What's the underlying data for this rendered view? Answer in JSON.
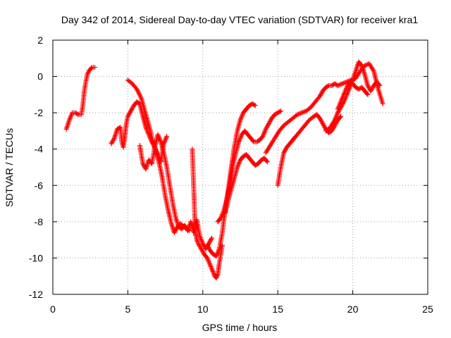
{
  "chart_data": {
    "type": "scatter",
    "title": "Day 342 of 2014, Sidereal Day-to-day VTEC variation (SDTVAR) for receiver kra1",
    "xlabel": "GPS time / hours",
    "ylabel": "SDTVAR / TECUs",
    "xlim": [
      0,
      25
    ],
    "ylim": [
      -12,
      2
    ],
    "xticks": [
      0,
      5,
      10,
      15,
      20,
      25
    ],
    "yticks": [
      -12,
      -10,
      -8,
      -6,
      -4,
      -2,
      0,
      2
    ],
    "grid": true,
    "marker": "plus",
    "color": "#ff0000",
    "series": [
      {
        "x": [
          0.9,
          1.1,
          1.3,
          1.5,
          1.7,
          1.9,
          2.0,
          2.1,
          2.2,
          2.3,
          2.4,
          2.5,
          2.6,
          2.8
        ],
        "y": [
          -2.9,
          -2.4,
          -2.0,
          -2.0,
          -2.1,
          -2.1,
          -1.6,
          -0.8,
          -0.3,
          0.1,
          0.3,
          0.4,
          0.5,
          0.5
        ]
      },
      {
        "x": [
          3.9,
          4.1,
          4.3,
          4.5,
          4.6,
          4.7,
          4.8,
          4.9,
          5.0,
          5.2,
          5.4,
          5.6,
          5.8,
          6.0,
          6.2,
          6.4,
          6.6,
          6.8,
          7.0,
          7.2,
          7.4,
          7.6
        ],
        "y": [
          -3.7,
          -3.4,
          -2.9,
          -2.8,
          -3.6,
          -3.9,
          -3.3,
          -2.6,
          -2.2,
          -1.9,
          -1.6,
          -1.4,
          -1.5,
          -2.2,
          -2.8,
          -3.2,
          -3.6,
          -3.9,
          -4.3,
          -4.7,
          -3.7,
          -3.3
        ]
      },
      {
        "x": [
          5.0,
          5.3,
          5.6,
          5.9,
          6.1,
          6.3,
          6.5,
          6.7,
          6.9,
          7.1,
          7.3,
          7.5,
          7.7,
          7.9,
          8.1,
          8.3,
          8.5,
          8.8,
          9.1
        ],
        "y": [
          -0.2,
          -0.4,
          -0.7,
          -1.2,
          -1.8,
          -2.4,
          -3.0,
          -3.7,
          -4.2,
          -4.8,
          -5.6,
          -6.6,
          -7.4,
          -8.1,
          -8.6,
          -8.3,
          -8.1,
          -8.3,
          -8.5
        ]
      },
      {
        "x": [
          5.8,
          6.0,
          6.2,
          6.4,
          6.6,
          6.8,
          7.0,
          7.2,
          7.4,
          7.6,
          7.8,
          8.0,
          8.2,
          8.4,
          8.6,
          8.8,
          9.0,
          9.2,
          9.4,
          9.6,
          9.8,
          10.0,
          10.2,
          10.4,
          10.6
        ],
        "y": [
          -3.8,
          -4.8,
          -5.1,
          -4.6,
          -4.8,
          -3.9,
          -3.2,
          -3.6,
          -4.2,
          -5.0,
          -6.0,
          -7.0,
          -7.8,
          -8.3,
          -8.4,
          -8.2,
          -8.5,
          -8.0,
          -8.6,
          -7.9,
          -8.8,
          -9.2,
          -9.5,
          -9.2,
          -8.9
        ]
      },
      {
        "x": [
          9.3,
          9.4,
          9.5,
          9.6,
          9.7,
          9.9,
          10.1,
          10.3,
          10.5,
          10.7,
          10.8,
          10.9,
          11.0,
          11.1,
          11.2,
          11.3
        ],
        "y": [
          -4.0,
          -6.2,
          -8.6,
          -9.0,
          -9.2,
          -9.5,
          -9.8,
          -10.0,
          -10.4,
          -10.8,
          -11.0,
          -11.1,
          -10.9,
          -10.3,
          -9.8,
          -9.3
        ]
      },
      {
        "x": [
          10.3,
          10.5,
          10.7,
          10.9,
          11.1,
          11.3,
          11.5,
          11.7,
          11.9,
          12.1,
          12.3,
          12.5,
          12.7,
          12.9,
          13.1,
          13.3,
          13.5
        ],
        "y": [
          -9.3,
          -9.6,
          -9.8,
          -9.9,
          -9.5,
          -8.6,
          -7.3,
          -6.2,
          -5.0,
          -3.9,
          -3.0,
          -2.4,
          -2.0,
          -1.8,
          -1.6,
          -1.5,
          -1.6
        ]
      },
      {
        "x": [
          11.0,
          11.2,
          11.4,
          11.6,
          11.8,
          12.0,
          12.2,
          12.4,
          12.6,
          12.8,
          13.0,
          13.2,
          13.4,
          13.6,
          13.8,
          14.0,
          14.2,
          14.4,
          14.6,
          14.8,
          15.0,
          15.2
        ],
        "y": [
          -8.0,
          -7.8,
          -7.4,
          -6.8,
          -6.0,
          -4.9,
          -4.2,
          -3.6,
          -3.2,
          -3.0,
          -3.2,
          -3.4,
          -3.6,
          -3.6,
          -3.5,
          -3.3,
          -2.9,
          -2.6,
          -2.3,
          -2.1,
          -2.0,
          -1.9
        ]
      },
      {
        "x": [
          11.5,
          11.7,
          11.9,
          12.1,
          12.3,
          12.5,
          12.7,
          12.9,
          13.1,
          13.3,
          13.5,
          13.7,
          13.9,
          14.1,
          14.3
        ],
        "y": [
          -7.5,
          -6.8,
          -6.2,
          -5.6,
          -5.0,
          -4.6,
          -4.4,
          -4.3,
          -4.5,
          -4.7,
          -4.9,
          -4.8,
          -4.6,
          -4.5,
          -4.7
        ]
      },
      {
        "x": [
          15.0,
          15.2,
          15.4,
          15.6,
          15.8,
          16.0,
          16.2,
          16.5,
          16.8,
          17.1,
          17.4,
          17.6,
          17.8,
          18.0,
          18.2,
          18.4,
          18.6,
          18.8,
          19.0,
          19.2
        ],
        "y": [
          -6.0,
          -5.0,
          -4.2,
          -3.9,
          -3.7,
          -3.5,
          -3.3,
          -3.0,
          -2.7,
          -2.4,
          -2.2,
          -2.1,
          -2.3,
          -2.6,
          -2.9,
          -3.1,
          -3.0,
          -2.7,
          -2.4,
          -2.2
        ]
      },
      {
        "x": [
          14.2,
          14.5,
          14.8,
          15.1,
          15.4,
          15.7,
          16.0,
          16.3,
          16.6,
          16.9,
          17.2,
          17.5,
          17.8,
          18.0,
          18.2,
          18.4,
          18.6,
          18.8,
          19.0,
          19.3,
          19.6,
          19.9,
          20.2,
          20.5,
          20.8,
          21.1,
          21.4,
          21.7,
          22.0
        ],
        "y": [
          -4.2,
          -3.8,
          -3.4,
          -3.0,
          -2.7,
          -2.5,
          -2.3,
          -2.1,
          -2.0,
          -1.9,
          -1.7,
          -1.4,
          -1.1,
          -0.8,
          -0.6,
          -0.5,
          -0.5,
          -0.4,
          -0.5,
          -0.4,
          -0.3,
          -0.2,
          -0.1,
          0.3,
          0.6,
          0.7,
          0.3,
          -0.7,
          -1.5
        ]
      },
      {
        "x": [
          18.2,
          18.5,
          18.8,
          19.0,
          19.2,
          19.4,
          19.6,
          19.8,
          20.0,
          20.2,
          20.4,
          20.6,
          20.8,
          21.0,
          21.2,
          21.4,
          21.6,
          21.8
        ],
        "y": [
          -3.0,
          -2.8,
          -2.4,
          -2.0,
          -1.7,
          -1.4,
          -1.0,
          -0.6,
          -0.2,
          0.3,
          0.8,
          0.6,
          0.1,
          -0.5,
          -0.8,
          -0.5,
          -0.3,
          -0.5
        ]
      },
      {
        "x": [
          19.0,
          19.2,
          19.4,
          19.6,
          19.8,
          20.0,
          20.2,
          20.4,
          20.6,
          20.8,
          21.0
        ],
        "y": [
          -1.8,
          -1.4,
          -1.0,
          -0.6,
          -0.3,
          -0.4,
          -0.6,
          -0.7,
          -0.6,
          -0.8,
          -1.0
        ]
      }
    ]
  }
}
